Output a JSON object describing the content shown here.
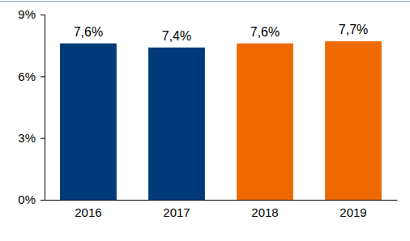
{
  "chart_data": {
    "type": "bar",
    "categories": [
      "2016",
      "2017",
      "2018",
      "2019"
    ],
    "values": [
      7.6,
      7.4,
      7.6,
      7.7
    ],
    "value_labels": [
      "7,6%",
      "7,4%",
      "7,6%",
      "7,7%"
    ],
    "colors": [
      "#003a78",
      "#003a78",
      "#ee6a00",
      "#ee6a00"
    ],
    "ylim": [
      0,
      9
    ],
    "yticks": [
      {
        "value": 0,
        "label": "0%"
      },
      {
        "value": 3,
        "label": "3%"
      },
      {
        "value": 6,
        "label": "6%"
      },
      {
        "value": 9,
        "label": "9%"
      }
    ],
    "grid": false,
    "data_labels": true
  }
}
